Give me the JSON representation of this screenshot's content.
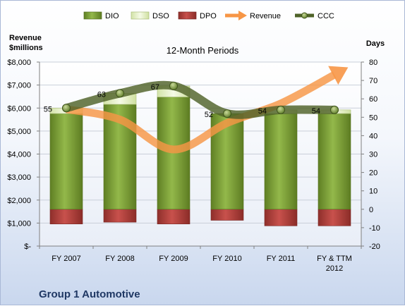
{
  "chart_data": {
    "type": "bar",
    "title": "12-Month Periods",
    "company": "Group 1 Automotive",
    "left_axis": {
      "label": [
        "Revenue",
        "$millions"
      ],
      "ticks": [
        "$-",
        "$1,000",
        "$2,000",
        "$3,000",
        "$4,000",
        "$5,000",
        "$6,000",
        "$7,000",
        "$8,000"
      ],
      "ylim": [
        0,
        8000
      ]
    },
    "right_axis": {
      "label": "Days",
      "ticks": [
        "-20",
        "-10",
        "0",
        "10",
        "20",
        "30",
        "40",
        "50",
        "60",
        "70",
        "80"
      ],
      "ylim": [
        -20,
        80
      ]
    },
    "categories": [
      [
        "FY 2007"
      ],
      [
        "FY 2008"
      ],
      [
        "FY 2009"
      ],
      [
        "FY 2010"
      ],
      [
        "FY 2011"
      ],
      [
        "FY & TTM",
        "2012"
      ]
    ],
    "legend_position": "top",
    "series": [
      {
        "name": "DIO",
        "type": "stacked-bar",
        "axis": "right",
        "color": "#7fa33c",
        "values": [
          52,
          57,
          61,
          52,
          52,
          52
        ]
      },
      {
        "name": "DSO",
        "type": "stacked-bar",
        "axis": "right",
        "color": "#eaf3cf",
        "values": [
          3,
          6,
          6,
          0,
          2,
          2
        ]
      },
      {
        "name": "DPO",
        "type": "negative-bar",
        "axis": "right",
        "color": "#c0504d",
        "values": [
          -8,
          -7,
          -8,
          -6,
          -9,
          -9
        ]
      },
      {
        "name": "Revenue",
        "type": "line",
        "axis": "left",
        "color": "#f79646",
        "values": [
          5950,
          5500,
          4200,
          5350,
          6200,
          7450
        ]
      },
      {
        "name": "CCC",
        "type": "line",
        "axis": "right",
        "color": "#4f6228",
        "values": [
          55,
          63,
          67,
          52,
          54,
          54
        ],
        "labels": [
          "55",
          "63",
          "67",
          "52",
          "54",
          "54"
        ]
      }
    ]
  }
}
